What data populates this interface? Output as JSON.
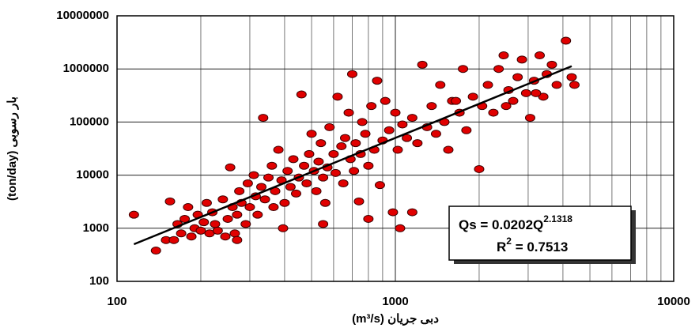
{
  "chart_data": {
    "type": "scatter",
    "x_label": "(m³/s) دبی جریان",
    "y_label": "(ton/day) بار رسوبی",
    "xscale": "log",
    "yscale": "log",
    "xlim": [
      100,
      10000
    ],
    "ylim": [
      100,
      10000000
    ],
    "xticks": [
      100,
      1000,
      10000
    ],
    "yticks": [
      100,
      1000,
      10000,
      100000,
      1000000,
      10000000
    ],
    "x_minor_grid": [
      200,
      300,
      400,
      500,
      600,
      700,
      800,
      900,
      2000,
      3000,
      4000,
      5000,
      6000,
      7000,
      8000,
      9000
    ],
    "grid": true,
    "annotation": {
      "equation": "Qs = 0.0202Q",
      "equation_exponent": "2.1318",
      "r2_base": "R",
      "r2_exponent": "2",
      "r2_rest": " = 0.7513"
    },
    "series": [
      {
        "type": "scatter",
        "color": "#e00000",
        "x": [
          115,
          138,
          150,
          155,
          160,
          165,
          170,
          175,
          180,
          185,
          190,
          195,
          200,
          205,
          210,
          215,
          220,
          225,
          230,
          240,
          245,
          250,
          255,
          260,
          265,
          270,
          275,
          280,
          290,
          295,
          300,
          310,
          315,
          320,
          330,
          335,
          340,
          350,
          360,
          365,
          370,
          380,
          390,
          395,
          400,
          410,
          420,
          430,
          440,
          450,
          460,
          470,
          480,
          490,
          500,
          510,
          520,
          530,
          540,
          550,
          560,
          570,
          580,
          600,
          610,
          620,
          640,
          650,
          660,
          680,
          690,
          700,
          710,
          720,
          740,
          750,
          760,
          780,
          800,
          820,
          840,
          860,
          880,
          900,
          920,
          950,
          980,
          1000,
          1020,
          1040,
          1060,
          1100,
          1150,
          1200,
          1250,
          1300,
          1350,
          1400,
          1450,
          1500,
          1550,
          1600,
          1700,
          1750,
          1800,
          1900,
          2000,
          2050,
          2150,
          2250,
          2350,
          2450,
          2550,
          2650,
          2750,
          2850,
          2950,
          3050,
          3150,
          3300,
          3400,
          3500,
          3650,
          3800,
          4100,
          4300,
          4400,
          1650,
          1150,
          3200,
          2500,
          800,
          270,
          550
        ],
        "values": [
          1800,
          380,
          600,
          3200,
          600,
          1200,
          800,
          1500,
          2500,
          700,
          1000,
          1800,
          900,
          1300,
          3000,
          800,
          2000,
          1200,
          900,
          3500,
          700,
          1500,
          14000,
          2500,
          800,
          1800,
          5000,
          3000,
          1200,
          7000,
          2500,
          10000,
          4000,
          1800,
          6000,
          120000,
          3500,
          9000,
          15000,
          2500,
          5000,
          30000,
          8000,
          1000,
          3000,
          12000,
          6000,
          20000,
          4500,
          9000,
          330000,
          15000,
          7000,
          25000,
          60000,
          12000,
          5000,
          18000,
          40000,
          9000,
          3000,
          14000,
          80000,
          25000,
          11000,
          300000,
          35000,
          7000,
          50000,
          150000,
          20000,
          800000,
          12000,
          40000,
          3200,
          25000,
          100000,
          60000,
          15000,
          200000,
          30000,
          600000,
          6500,
          45000,
          250000,
          70000,
          2000,
          150000,
          30000,
          1000,
          90000,
          50000,
          120000,
          40000,
          1200000,
          80000,
          200000,
          60000,
          500000,
          100000,
          30000,
          250000,
          150000,
          1000000,
          70000,
          300000,
          13000,
          200000,
          500000,
          150000,
          1000000,
          1800000,
          400000,
          250000,
          700000,
          1500000,
          350000,
          120000,
          600000,
          1800000,
          300000,
          800000,
          1200000,
          500000,
          3400000,
          700000,
          500000,
          250000,
          2000,
          350000,
          200000,
          1500,
          600,
          1200
        ]
      },
      {
        "type": "line",
        "color": "#000000",
        "x": [
          115,
          4300
        ],
        "values": [
          500,
          1125000
        ]
      }
    ]
  }
}
